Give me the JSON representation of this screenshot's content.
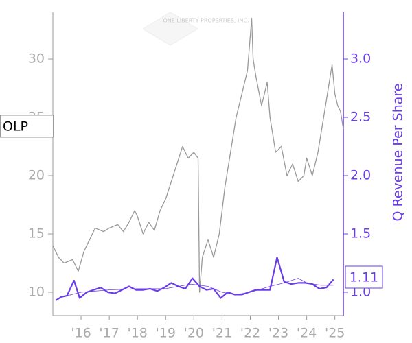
{
  "chart_data": {
    "type": "line",
    "watermark": "ONE LIBERTY PROPERTIES, INC.",
    "ticker_label": "OLP",
    "last_value_label": "1.11",
    "y2_label": "Q Revenue Per Share",
    "xlim": [
      2015,
      2025.3
    ],
    "xticks": [
      {
        "value": 2016,
        "label": "'16"
      },
      {
        "value": 2017,
        "label": "'17"
      },
      {
        "value": 2018,
        "label": "'18"
      },
      {
        "value": 2019,
        "label": "'19"
      },
      {
        "value": 2020,
        "label": "'20"
      },
      {
        "value": 2021,
        "label": "'21"
      },
      {
        "value": 2022,
        "label": "'22"
      },
      {
        "value": 2023,
        "label": "'23"
      },
      {
        "value": 2024,
        "label": "'24"
      },
      {
        "value": 2025,
        "label": "'25"
      }
    ],
    "ylim": [
      8,
      34
    ],
    "yticks": [
      10,
      15,
      20,
      25,
      30
    ],
    "y2lim": [
      0.8,
      3.4
    ],
    "y2ticks": [
      {
        "value": 1.0,
        "label": "1.0"
      },
      {
        "value": 1.5,
        "label": "1.5"
      },
      {
        "value": 2.0,
        "label": "2.0"
      },
      {
        "value": 2.5,
        "label": "2.5"
      },
      {
        "value": 3.0,
        "label": "3.0"
      }
    ],
    "series": [
      {
        "color": "#999999",
        "x": [
          2015.0,
          2015.2,
          2015.4,
          2015.7,
          2015.9,
          2016.1,
          2016.3,
          2016.5,
          2016.8,
          2017.0,
          2017.3,
          2017.5,
          2017.7,
          2017.9,
          2018.0,
          2018.2,
          2018.4,
          2018.6,
          2018.8,
          2019.0,
          2019.2,
          2019.4,
          2019.6,
          2019.8,
          2020.0,
          2020.15,
          2020.2,
          2020.3,
          2020.5,
          2020.7,
          2020.9,
          2021.1,
          2021.3,
          2021.5,
          2021.7,
          2021.9,
          2022.0,
          2022.05,
          2022.1,
          2022.2,
          2022.4,
          2022.6,
          2022.7,
          2022.9,
          2023.1,
          2023.3,
          2023.5,
          2023.7,
          2023.9,
          2024.0,
          2024.2,
          2024.4,
          2024.6,
          2024.8,
          2024.9,
          2025.0,
          2025.1,
          2025.2,
          2025.3
        ],
        "values": [
          14,
          13,
          12.5,
          12.8,
          11.8,
          13.5,
          14.5,
          15.5,
          15.2,
          15.5,
          15.8,
          15.2,
          16.0,
          17.0,
          16.5,
          15.0,
          16.0,
          15.3,
          17.0,
          18.0,
          19.5,
          21.0,
          22.5,
          21.5,
          22.0,
          21.5,
          10.0,
          13.0,
          14.5,
          13.0,
          15.0,
          19.0,
          22.0,
          25.0,
          27.0,
          29.0,
          32.0,
          33.5,
          30.0,
          28.5,
          26.0,
          28.0,
          25.0,
          22.0,
          22.5,
          20.0,
          21.0,
          19.5,
          20.0,
          21.5,
          20.0,
          22.0,
          25.0,
          28.0,
          29.5,
          27.0,
          26.0,
          25.5,
          24.0
        ]
      },
      {
        "color": "#6a3de8",
        "axis": "y2",
        "width": 2.2,
        "x": [
          2015.1,
          2015.3,
          2015.5,
          2015.75,
          2015.95,
          2016.2,
          2016.45,
          2016.7,
          2016.95,
          2017.2,
          2017.45,
          2017.7,
          2017.95,
          2018.2,
          2018.45,
          2018.7,
          2018.95,
          2019.2,
          2019.45,
          2019.7,
          2019.95,
          2020.2,
          2020.45,
          2020.7,
          2020.95,
          2021.2,
          2021.45,
          2021.7,
          2021.95,
          2022.2,
          2022.45,
          2022.7,
          2022.95,
          2023.2,
          2023.45,
          2023.7,
          2023.95,
          2024.2,
          2024.45,
          2024.7,
          2024.95
        ],
        "values": [
          0.93,
          0.96,
          0.97,
          1.1,
          0.95,
          1.0,
          1.02,
          1.04,
          1.0,
          0.99,
          1.02,
          1.05,
          1.02,
          1.02,
          1.03,
          1.01,
          1.04,
          1.08,
          1.05,
          1.03,
          1.12,
          1.05,
          1.02,
          1.03,
          0.95,
          1.0,
          0.98,
          0.98,
          1.0,
          1.02,
          1.02,
          1.02,
          1.3,
          1.09,
          1.07,
          1.08,
          1.08,
          1.07,
          1.03,
          1.04,
          1.11
        ]
      },
      {
        "color": "#6a3de8",
        "axis": "y2",
        "width": 0.8,
        "x": [
          2015.5,
          2016.0,
          2017.0,
          2018.0,
          2019.0,
          2019.9,
          2020.5,
          2021.0,
          2021.5,
          2022.0,
          2022.7,
          2023.2,
          2023.7,
          2024.0,
          2024.5,
          2024.95
        ],
        "values": [
          0.97,
          1.0,
          1.02,
          1.03,
          1.03,
          1.07,
          1.05,
          1.0,
          0.98,
          1.0,
          1.05,
          1.08,
          1.12,
          1.08,
          1.06,
          1.06
        ]
      }
    ]
  }
}
